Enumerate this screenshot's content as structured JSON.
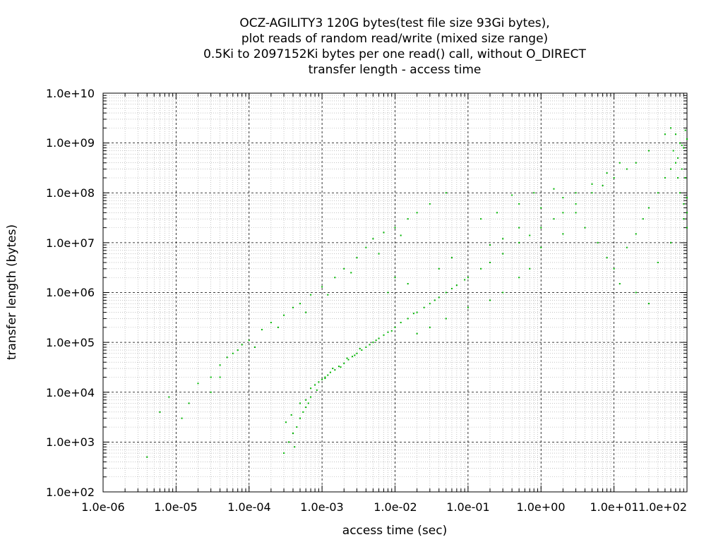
{
  "chart_data": {
    "type": "scatter",
    "title_lines": [
      "OCZ-AGILITY3 120G bytes(test file size 93Gi bytes),",
      "plot reads of random read/write (mixed size range)",
      "0.5Ki to 2097152Ki bytes per one read() call, without O_DIRECT",
      "transfer length - access time"
    ],
    "xlabel": "access time (sec)",
    "ylabel": "transfer length (bytes)",
    "xscale": "log",
    "yscale": "log",
    "xlim": [
      1e-06,
      100
    ],
    "ylim": [
      100,
      10000000000.0
    ],
    "x_tick_labels": [
      "1.0e-06",
      "1.0e-05",
      "1.0e-04",
      "1.0e-03",
      "1.0e-02",
      "1.0e-01",
      "1.0e+00",
      "1.0e+01",
      "1.0e+02"
    ],
    "y_tick_labels": [
      "1.0e+02",
      "1.0e+03",
      "1.0e+04",
      "1.0e+05",
      "1.0e+06",
      "1.0e+07",
      "1.0e+08",
      "1.0e+09",
      "1.0e+10"
    ],
    "grid": true,
    "point_color": "#00b400",
    "series": [
      {
        "points": [
          [
            0.0007,
            12000
          ],
          [
            0.0008,
            14000
          ],
          [
            0.0009,
            16000
          ],
          [
            0.001,
            18000
          ],
          [
            0.0011,
            20000
          ],
          [
            0.0012,
            22000
          ],
          [
            0.0013,
            25000
          ],
          [
            0.0015,
            28000
          ],
          [
            0.0017,
            33000
          ],
          [
            0.002,
            38000
          ],
          [
            0.0023,
            45000
          ],
          [
            0.0026,
            52000
          ],
          [
            0.003,
            60000
          ],
          [
            0.0035,
            70000
          ],
          [
            0.004,
            80000
          ],
          [
            0.005,
            100000
          ],
          [
            0.006,
            120000
          ],
          [
            0.007,
            140000
          ],
          [
            0.008,
            160000
          ],
          [
            0.01,
            200000
          ],
          [
            0.012,
            250000
          ],
          [
            0.015,
            300000
          ],
          [
            0.02,
            400000
          ],
          [
            0.025,
            500000
          ],
          [
            0.03,
            600000
          ],
          [
            0.04,
            800000
          ],
          [
            0.05,
            1000000
          ],
          [
            0.07,
            1400000
          ],
          [
            0.1,
            2000000
          ],
          [
            0.15,
            3000000
          ],
          [
            0.2,
            4000000
          ],
          [
            0.3,
            6000000
          ],
          [
            0.5,
            10000000
          ],
          [
            0.7,
            14000000
          ],
          [
            1.0,
            20000000
          ],
          [
            1.5,
            30000000
          ],
          [
            2.0,
            40000000
          ],
          [
            3.0,
            60000000
          ],
          [
            5.0,
            100000000
          ],
          [
            7.0,
            140000000
          ],
          [
            10.0,
            200000000
          ],
          [
            15.0,
            300000000
          ],
          [
            20.0,
            400000000
          ],
          [
            30.0,
            700000000
          ],
          [
            50.0,
            1500000000
          ],
          [
            60.0,
            2000000000
          ],
          [
            0.00085,
            11000
          ],
          [
            0.0011,
            19000
          ],
          [
            0.0014,
            30000
          ],
          [
            0.0018,
            32000
          ],
          [
            0.0022,
            48000
          ],
          [
            0.0028,
            55000
          ],
          [
            0.0033,
            75000
          ],
          [
            0.0045,
            90000
          ],
          [
            0.0055,
            110000
          ],
          [
            0.009,
            170000
          ],
          [
            0.018,
            380000
          ],
          [
            0.035,
            700000
          ],
          [
            0.06,
            1200000
          ],
          [
            0.09,
            1800000
          ],
          [
            0.00035,
            1000
          ],
          [
            0.0004,
            1500
          ],
          [
            0.00045,
            2000
          ],
          [
            0.0005,
            3000
          ],
          [
            0.00055,
            4000
          ],
          [
            0.0006,
            5000
          ],
          [
            0.00065,
            6000
          ],
          [
            0.0007,
            8000
          ],
          [
            0.0003,
            600
          ],
          [
            0.00032,
            2500
          ],
          [
            0.00038,
            3500
          ],
          [
            0.00042,
            800
          ],
          [
            0.0005,
            6000
          ],
          [
            0.0006,
            7000
          ],
          [
            4e-06,
            500
          ],
          [
            6e-06,
            4000
          ],
          [
            8e-06,
            8000
          ],
          [
            1.2e-05,
            3000
          ],
          [
            1.5e-05,
            6000
          ],
          [
            2e-05,
            15000
          ],
          [
            3e-05,
            20000
          ],
          [
            4e-05,
            35000
          ],
          [
            5e-05,
            50000
          ],
          [
            6e-05,
            60000
          ],
          [
            8e-05,
            90000
          ],
          [
            0.0001,
            110000
          ],
          [
            0.00015,
            180000
          ],
          [
            0.0002,
            250000
          ],
          [
            0.0003,
            350000
          ],
          [
            0.0004,
            500000
          ],
          [
            0.0005,
            600000
          ],
          [
            0.0007,
            900000
          ],
          [
            0.001,
            1300000
          ],
          [
            0.0015,
            2000000
          ],
          [
            0.002,
            3000000
          ],
          [
            0.003,
            5000000
          ],
          [
            0.004,
            8000000
          ],
          [
            0.005,
            12000000
          ],
          [
            0.007,
            16000000
          ],
          [
            0.01,
            20000000
          ],
          [
            0.015,
            30000000
          ],
          [
            0.02,
            40000000
          ],
          [
            0.03,
            60000000
          ],
          [
            0.05,
            100000000
          ],
          [
            3e-05,
            10000
          ],
          [
            4e-05,
            20000
          ],
          [
            7e-05,
            70000
          ],
          [
            0.00012,
            80000
          ],
          [
            0.00025,
            200000
          ],
          [
            0.0006,
            400000
          ],
          [
            0.0012,
            900000
          ],
          [
            0.0025,
            2500000
          ],
          [
            0.006,
            6000000
          ],
          [
            0.012,
            14000000
          ],
          [
            0.2,
            9000000
          ],
          [
            0.3,
            12000000
          ],
          [
            0.5,
            20000000
          ],
          [
            1.0,
            50000000
          ],
          [
            2.0,
            80000000
          ],
          [
            3.0,
            100000000
          ],
          [
            5.0,
            150000000
          ],
          [
            8.0,
            250000000
          ],
          [
            12.0,
            400000000
          ],
          [
            0.5,
            60000000
          ],
          [
            0.8,
            100000000
          ],
          [
            1.5,
            120000000
          ],
          [
            0.15,
            30000000
          ],
          [
            0.25,
            40000000
          ],
          [
            0.4,
            90000000
          ],
          [
            70.0,
            1500000000
          ],
          [
            80.0,
            1000000000
          ],
          [
            90.0,
            800000000
          ],
          [
            100.0,
            1200000000
          ],
          [
            75.0,
            500000000
          ],
          [
            85.0,
            300000000
          ],
          [
            95.0,
            200000000
          ],
          [
            65.0,
            700000000
          ],
          [
            70.0,
            400000000
          ],
          [
            80.0,
            100000000
          ],
          [
            90.0,
            60000000
          ],
          [
            100.0,
            40000000
          ],
          [
            75.0,
            200000000
          ],
          [
            85.0,
            900000000
          ],
          [
            95.0,
            1800000000
          ],
          [
            60.0,
            300000000
          ],
          [
            50.0,
            200000000
          ],
          [
            40.0,
            100000000
          ],
          [
            30.0,
            50000000
          ],
          [
            25.0,
            30000000
          ],
          [
            20.0,
            15000000
          ],
          [
            15.0,
            8000000
          ],
          [
            10.0,
            3000000
          ],
          [
            12.0,
            1500000
          ],
          [
            20.0,
            1000000
          ],
          [
            30.0,
            600000
          ],
          [
            8.0,
            5000000
          ],
          [
            6.0,
            10000000
          ],
          [
            4.0,
            20000000
          ],
          [
            3.0,
            40000000
          ],
          [
            40.0,
            4000000
          ],
          [
            60.0,
            10000000
          ],
          [
            100.0,
            80000000
          ],
          [
            100.0,
            20000000
          ],
          [
            90.0,
            30000000
          ],
          [
            0.3,
            1000000
          ],
          [
            0.5,
            2000000
          ],
          [
            0.7,
            3000000
          ],
          [
            1.0,
            8000000
          ],
          [
            2.0,
            15000000
          ],
          [
            0.1,
            500000
          ],
          [
            0.2,
            700000
          ],
          [
            0.05,
            300000
          ],
          [
            0.03,
            200000
          ],
          [
            0.02,
            150000
          ],
          [
            0.008,
            1000000
          ],
          [
            0.01,
            2000000
          ],
          [
            0.015,
            1500000
          ],
          [
            0.04,
            3000000
          ],
          [
            0.06,
            5000000
          ]
        ]
      }
    ]
  }
}
